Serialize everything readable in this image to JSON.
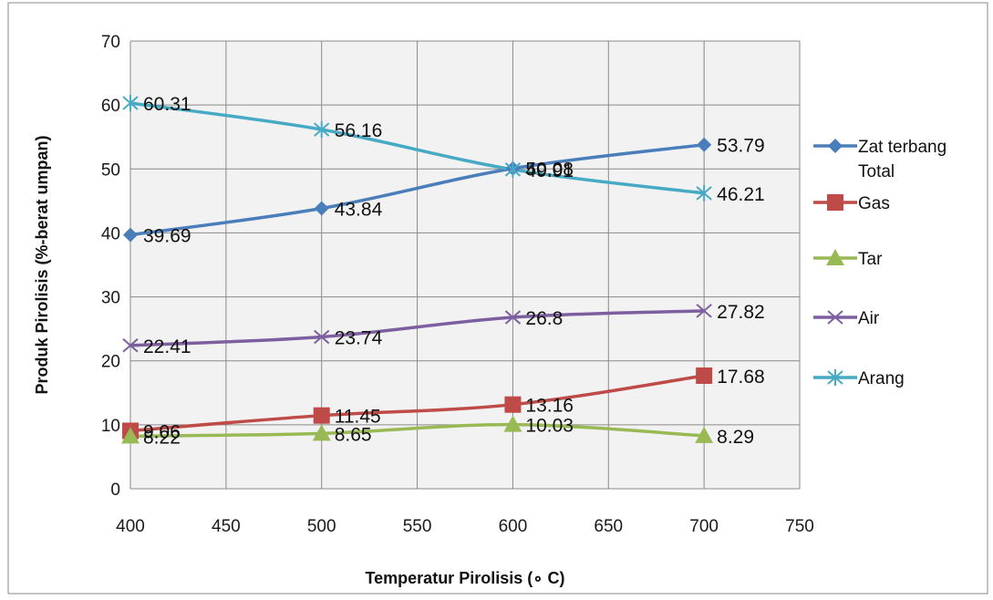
{
  "chart_data": {
    "type": "line",
    "title": "",
    "xlabel": "Temperatur Pirolisis (∘ C)",
    "ylabel": "Produk Pirolisis (%-berat umpan)",
    "xlim": [
      400,
      750
    ],
    "ylim": [
      0,
      70
    ],
    "x_ticks": [
      "400",
      "450",
      "500",
      "550",
      "600",
      "650",
      "700",
      "750"
    ],
    "y_ticks": [
      "0",
      "10",
      "20",
      "30",
      "40",
      "50",
      "60",
      "70"
    ],
    "grid": true,
    "legend_position": "right",
    "series": [
      {
        "name": "Zat terbang Total",
        "legend_lines": [
          "Zat terbang",
          "Total"
        ],
        "marker": "diamond",
        "color": "#4a7ebb",
        "x": [
          400,
          500,
          600,
          700
        ],
        "y": [
          39.69,
          43.84,
          50.08,
          53.79
        ],
        "labels": [
          "39.69",
          "43.84",
          "50.08",
          "53.79"
        ]
      },
      {
        "name": "Gas",
        "legend_lines": [
          "Gas"
        ],
        "marker": "square",
        "color": "#be4b48",
        "x": [
          400,
          500,
          600,
          700
        ],
        "y": [
          9.06,
          11.45,
          13.16,
          17.68
        ],
        "labels": [
          "9.06",
          "11.45",
          "13.16",
          "17.68"
        ]
      },
      {
        "name": "Tar",
        "legend_lines": [
          "Tar"
        ],
        "marker": "triangle",
        "color": "#98b954",
        "x": [
          400,
          500,
          600,
          700
        ],
        "y": [
          8.22,
          8.65,
          10.03,
          8.29
        ],
        "labels": [
          "8.22",
          "8.65",
          "10.03",
          "8.29"
        ]
      },
      {
        "name": "Air",
        "legend_lines": [
          "Air"
        ],
        "marker": "x",
        "color": "#7d5fa0",
        "x": [
          400,
          500,
          600,
          700
        ],
        "y": [
          22.41,
          23.74,
          26.8,
          27.82
        ],
        "labels": [
          "22.41",
          "23.74",
          "26.8",
          "27.82"
        ]
      },
      {
        "name": "Arang",
        "legend_lines": [
          "Arang"
        ],
        "marker": "star",
        "color": "#46aac4",
        "x": [
          400,
          500,
          600,
          700
        ],
        "y": [
          60.31,
          56.16,
          49.91,
          46.21
        ],
        "labels": [
          "60.31",
          "56.16",
          "49.91",
          "46.21"
        ]
      }
    ]
  }
}
